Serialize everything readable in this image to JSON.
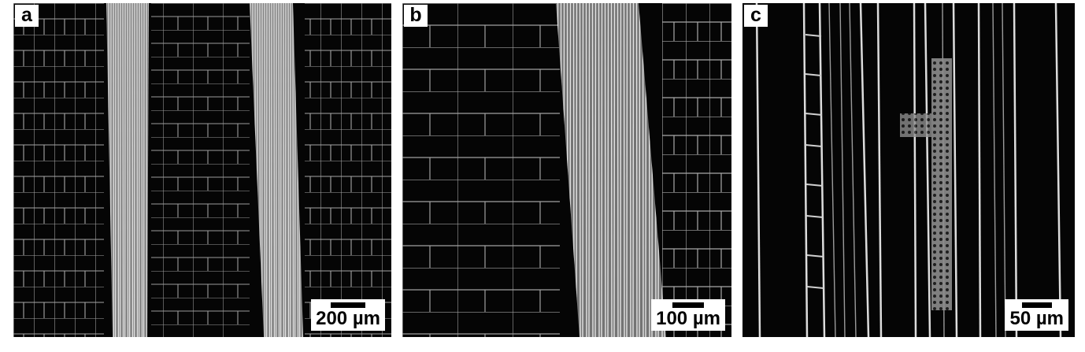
{
  "panels": [
    {
      "id": "a",
      "letter": "a",
      "scale_label": "200 µm"
    },
    {
      "id": "b",
      "letter": "b",
      "scale_label": "100 µm"
    },
    {
      "id": "c",
      "letter": "c",
      "scale_label": "50 µm"
    }
  ],
  "colors": {
    "background": "#050505",
    "cell_walls": "#d8d8d8",
    "label_box": "#ffffff",
    "label_text": "#000000"
  }
}
